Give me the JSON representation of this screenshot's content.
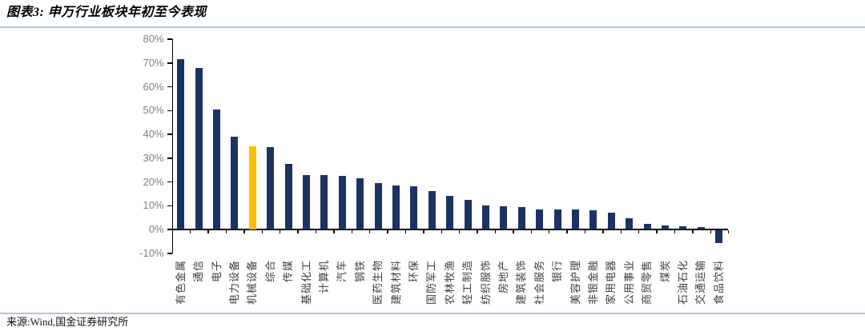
{
  "header": {
    "title": "图表3: 申万行业板块年初至今表现"
  },
  "footer": {
    "source": "来源:Wind,国金证券研究所"
  },
  "chart_data": {
    "type": "bar",
    "title": "申万行业板块年初至今表现",
    "unit": "%",
    "categories": [
      "有色金属",
      "通信",
      "电子",
      "电力设备",
      "机械设备",
      "综合",
      "传媒",
      "基础化工",
      "计算机",
      "汽车",
      "钢铁",
      "医药生物",
      "建筑材料",
      "环保",
      "国防军工",
      "农林牧渔",
      "轻工制造",
      "纺织服饰",
      "房地产",
      "建筑装饰",
      "社会服务",
      "银行",
      "美容护理",
      "非银金融",
      "家用电器",
      "公用事业",
      "商贸零售",
      "煤炭",
      "石油石化",
      "交通运输",
      "食品饮料"
    ],
    "values": [
      71.5,
      68,
      50.5,
      39,
      35,
      34.5,
      27.5,
      23,
      23,
      22.5,
      21.5,
      19.5,
      18.5,
      18,
      16,
      14,
      12.5,
      10,
      9.7,
      9.5,
      8.5,
      8.4,
      8.3,
      8,
      7,
      4.7,
      2.2,
      1.7,
      1.5,
      1,
      -5.3
    ],
    "highlight_index": 4,
    "ylim": [
      -10,
      80
    ],
    "yticks": [
      80,
      70,
      60,
      50,
      40,
      30,
      20,
      10,
      0,
      -10
    ],
    "ytick_labels": [
      "80%",
      "70%",
      "60%",
      "50%",
      "40%",
      "30%",
      "20%",
      "10%",
      "0%",
      "-10%"
    ],
    "grid": false,
    "legend": null,
    "colors": {
      "bar": "#1b3363",
      "highlight": "#ffc000",
      "axis": "#000000",
      "ytick_label": "#808080",
      "xtick_label": "#3d3d3d",
      "rule": "#a9c6de"
    }
  }
}
